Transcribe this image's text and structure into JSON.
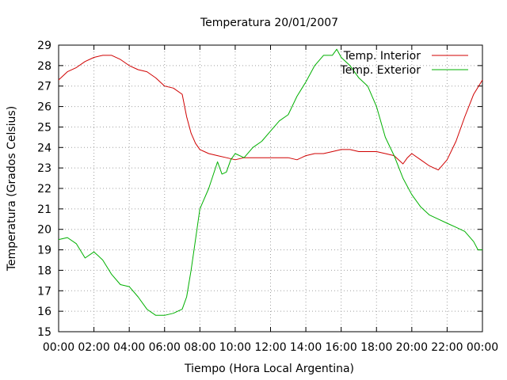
{
  "chart_data": {
    "type": "line",
    "title": "Temperatura 20/01/2007",
    "xlabel": "Tiempo (Hora Local Argentina)",
    "ylabel": "Temperatura (Grados Celsius)",
    "xlim": [
      0,
      24
    ],
    "ylim": [
      15,
      29
    ],
    "x_ticks": [
      0,
      2,
      4,
      6,
      8,
      10,
      12,
      14,
      16,
      18,
      20,
      22,
      24
    ],
    "x_tick_labels": [
      "00:00",
      "02:00",
      "04:00",
      "06:00",
      "08:00",
      "10:00",
      "12:00",
      "14:00",
      "16:00",
      "18:00",
      "20:00",
      "22:00",
      "00:00"
    ],
    "y_ticks": [
      15,
      16,
      17,
      18,
      19,
      20,
      21,
      22,
      23,
      24,
      25,
      26,
      27,
      28,
      29
    ],
    "grid": true,
    "legend_position": "top-right",
    "series": [
      {
        "name": "Temp. Interior",
        "color": "#d00000",
        "x": [
          0,
          0.25,
          0.5,
          1.0,
          1.5,
          2.0,
          2.5,
          3.0,
          3.5,
          4.0,
          4.5,
          5.0,
          5.5,
          6.0,
          6.5,
          7.0,
          7.25,
          7.5,
          7.75,
          8.0,
          8.5,
          9.0,
          9.5,
          10.0,
          10.5,
          11.0,
          11.5,
          12.0,
          12.5,
          13.0,
          13.5,
          14.0,
          14.5,
          15.0,
          15.5,
          16.0,
          16.5,
          17.0,
          17.5,
          18.0,
          18.5,
          19.0,
          19.5,
          19.75,
          20.0,
          20.5,
          21.0,
          21.5,
          22.0,
          22.5,
          23.0,
          23.5,
          24.0
        ],
        "y": [
          27.3,
          27.5,
          27.7,
          27.9,
          28.2,
          28.4,
          28.5,
          28.5,
          28.3,
          28.0,
          27.8,
          27.7,
          27.4,
          27.0,
          26.9,
          26.6,
          25.5,
          24.7,
          24.2,
          23.9,
          23.7,
          23.6,
          23.5,
          23.4,
          23.5,
          23.5,
          23.5,
          23.5,
          23.5,
          23.5,
          23.4,
          23.6,
          23.7,
          23.7,
          23.8,
          23.9,
          23.9,
          23.8,
          23.8,
          23.8,
          23.7,
          23.6,
          23.2,
          23.5,
          23.7,
          23.4,
          23.1,
          22.9,
          23.4,
          24.3,
          25.5,
          26.6,
          27.3
        ]
      },
      {
        "name": "Temp. Exterior",
        "color": "#00b000",
        "x": [
          0,
          0.5,
          1.0,
          1.5,
          2.0,
          2.25,
          2.5,
          3.0,
          3.5,
          4.0,
          4.5,
          5.0,
          5.5,
          6.0,
          6.5,
          6.75,
          7.0,
          7.25,
          7.5,
          7.75,
          8.0,
          8.5,
          9.0,
          9.25,
          9.5,
          9.75,
          10.0,
          10.5,
          11.0,
          11.5,
          12.0,
          12.5,
          13.0,
          13.5,
          14.0,
          14.5,
          15.0,
          15.5,
          15.75,
          16.0,
          16.5,
          17.0,
          17.5,
          18.0,
          18.5,
          19.0,
          19.5,
          20.0,
          20.5,
          21.0,
          21.5,
          22.0,
          22.5,
          23.0,
          23.5,
          23.75,
          24.0
        ],
        "y": [
          19.5,
          19.6,
          19.3,
          18.6,
          18.9,
          18.7,
          18.5,
          17.8,
          17.3,
          17.2,
          16.7,
          16.1,
          15.8,
          15.8,
          15.9,
          16.0,
          16.1,
          16.7,
          18.0,
          19.5,
          21.0,
          22.0,
          23.3,
          22.7,
          22.8,
          23.4,
          23.7,
          23.5,
          24.0,
          24.3,
          24.8,
          25.3,
          25.6,
          26.5,
          27.2,
          28.0,
          28.5,
          28.5,
          28.8,
          28.4,
          28.0,
          27.4,
          27.0,
          26.0,
          24.5,
          23.6,
          22.5,
          21.7,
          21.1,
          20.7,
          20.5,
          20.3,
          20.1,
          19.9,
          19.4,
          19.0,
          19.0
        ]
      }
    ]
  }
}
